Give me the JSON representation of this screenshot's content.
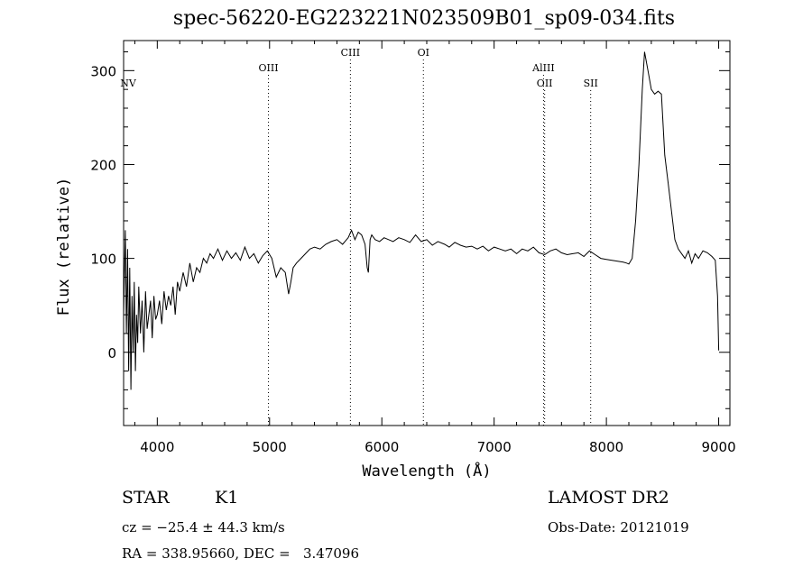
{
  "chart_data": {
    "type": "line",
    "title": "spec-56220-EG223221N023509B01_sp09-034.fits",
    "xlabel": "Wavelength (Å)",
    "ylabel": "Flux (relative)",
    "xlim": [
      3700,
      9100
    ],
    "ylim": [
      -78,
      332
    ],
    "xticks": [
      4000,
      5000,
      6000,
      7000,
      8000,
      9000
    ],
    "yticks": [
      0,
      100,
      200,
      300
    ],
    "grid": false,
    "line_color": "#000000",
    "series": [
      {
        "x": [
          3700,
          3715,
          3725,
          3735,
          3745,
          3755,
          3765,
          3775,
          3785,
          3795,
          3805,
          3815,
          3825,
          3835,
          3850,
          3865,
          3880,
          3895,
          3910,
          3925,
          3940,
          3955,
          3970,
          3985,
          4000,
          4020,
          4040,
          4060,
          4080,
          4100,
          4120,
          4140,
          4160,
          4180,
          4200,
          4230,
          4260,
          4290,
          4320,
          4350,
          4380,
          4410,
          4440,
          4470,
          4500,
          4540,
          4580,
          4620,
          4660,
          4700,
          4740,
          4780,
          4820,
          4860,
          4900,
          4940,
          4980,
          5020,
          5060,
          5100,
          5140,
          5170,
          5190,
          5210,
          5240,
          5280,
          5320,
          5360,
          5400,
          5450,
          5500,
          5550,
          5600,
          5650,
          5700,
          5730,
          5760,
          5790,
          5820,
          5850,
          5870,
          5880,
          5895,
          5910,
          5940,
          5980,
          6020,
          6060,
          6100,
          6150,
          6200,
          6250,
          6300,
          6350,
          6400,
          6450,
          6500,
          6560,
          6600,
          6650,
          6700,
          6750,
          6800,
          6850,
          6900,
          6950,
          7000,
          7050,
          7100,
          7150,
          7200,
          7250,
          7300,
          7350,
          7400,
          7450,
          7500,
          7550,
          7600,
          7650,
          7700,
          7750,
          7800,
          7850,
          7900,
          7950,
          8000,
          8050,
          8100,
          8150,
          8180,
          8200,
          8230,
          8260,
          8290,
          8320,
          8340,
          8370,
          8400,
          8430,
          8460,
          8490,
          8520,
          8550,
          8580,
          8610,
          8640,
          8670,
          8700,
          8730,
          8760,
          8790,
          8820,
          8860,
          8900,
          8940,
          8970,
          8990,
          9000
        ],
        "y": [
          40,
          130,
          20,
          110,
          -20,
          90,
          -40,
          60,
          0,
          75,
          -20,
          40,
          10,
          70,
          20,
          55,
          0,
          65,
          25,
          40,
          55,
          15,
          60,
          35,
          40,
          55,
          30,
          65,
          45,
          60,
          50,
          70,
          40,
          75,
          65,
          85,
          70,
          95,
          75,
          90,
          85,
          100,
          95,
          105,
          100,
          110,
          98,
          108,
          100,
          106,
          98,
          112,
          100,
          105,
          95,
          103,
          108,
          100,
          80,
          90,
          85,
          62,
          75,
          90,
          95,
          100,
          105,
          110,
          112,
          110,
          115,
          118,
          120,
          115,
          122,
          130,
          120,
          128,
          125,
          115,
          90,
          85,
          120,
          125,
          120,
          118,
          122,
          120,
          118,
          122,
          120,
          117,
          125,
          118,
          120,
          114,
          118,
          115,
          112,
          117,
          114,
          112,
          113,
          110,
          113,
          108,
          112,
          110,
          108,
          110,
          105,
          110,
          108,
          112,
          106,
          104,
          108,
          110,
          106,
          104,
          105,
          106,
          102,
          108,
          104,
          100,
          99,
          98,
          97,
          96,
          95,
          94,
          100,
          140,
          200,
          280,
          320,
          300,
          280,
          275,
          278,
          275,
          210,
          180,
          150,
          120,
          110,
          105,
          100,
          108,
          95,
          105,
          100,
          108,
          106,
          102,
          98,
          60,
          2
        ]
      }
    ],
    "line_labels": [
      {
        "wavelength": 3740,
        "label": "NV",
        "row": "low",
        "dotted": false
      },
      {
        "wavelength": 4990,
        "label": "OIII",
        "row": "mid",
        "dotted": true
      },
      {
        "wavelength": 5720,
        "label": "CIII",
        "row": "high",
        "dotted": true
      },
      {
        "wavelength": 6370,
        "label": "OI",
        "row": "high",
        "dotted": true
      },
      {
        "wavelength": 7440,
        "label": "AlIII",
        "row": "mid",
        "dotted": true
      },
      {
        "wavelength": 7450,
        "label": "OII",
        "row": "low",
        "dotted": true
      },
      {
        "wavelength": 7860,
        "label": "SII",
        "row": "low",
        "dotted": true
      }
    ]
  },
  "info": {
    "class": "STAR",
    "subclass": "K1",
    "survey": "LAMOST DR2",
    "cz": "cz = −25.4 ± 44.3 km/s",
    "obs_date": "Obs-Date: 20121019",
    "coords": "RA = 338.95660, DEC =   3.47096"
  }
}
